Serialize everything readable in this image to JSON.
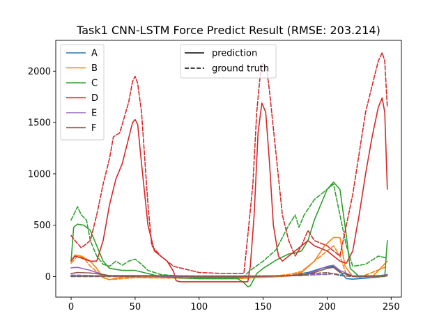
{
  "chart_data": {
    "type": "line",
    "title": "Task1 CNN-LSTM Force Predict Result (RMSE: 203.214)",
    "xlabel": "",
    "ylabel": "",
    "xlim": [
      -12,
      258
    ],
    "ylim": [
      -200,
      2300
    ],
    "xticks": [
      0,
      50,
      100,
      150,
      200,
      250
    ],
    "yticks": [
      0,
      500,
      1000,
      1500,
      2000
    ],
    "grid": false,
    "series_legend_position": "top-left",
    "style_legend_position": "top-center",
    "style_legend": [
      {
        "label": "prediction",
        "dash": "solid"
      },
      {
        "label": "ground truth",
        "dash": "dashed"
      }
    ],
    "series": [
      {
        "name": "A",
        "color": "#1f77b4",
        "prediction": {
          "x": [
            0,
            20,
            40,
            60,
            80,
            100,
            120,
            135,
            150,
            170,
            185,
            195,
            205,
            210,
            215,
            220,
            230,
            240,
            247
          ],
          "y": [
            5,
            5,
            5,
            3,
            0,
            -5,
            -5,
            -5,
            5,
            10,
            40,
            80,
            100,
            50,
            -20,
            -25,
            -15,
            -5,
            10
          ]
        },
        "truth": {
          "x": [
            0,
            20,
            40,
            60,
            80,
            100,
            140,
            160,
            180,
            195,
            205,
            215,
            230,
            247
          ],
          "y": [
            10,
            5,
            5,
            5,
            3,
            0,
            0,
            5,
            10,
            20,
            30,
            5,
            0,
            5
          ]
        }
      },
      {
        "name": "B",
        "color": "#ff7f0e",
        "prediction": {
          "x": [
            0,
            3,
            8,
            15,
            20,
            25,
            30,
            40,
            60,
            80,
            100,
            130,
            145,
            155,
            170,
            180,
            190,
            198,
            205,
            210,
            214,
            220,
            235,
            247
          ],
          "y": [
            150,
            210,
            200,
            150,
            80,
            -10,
            -30,
            -5,
            -5,
            -10,
            -20,
            -20,
            -10,
            -5,
            5,
            40,
            150,
            300,
            380,
            380,
            100,
            0,
            -5,
            150
          ]
        },
        "truth": {
          "x": [
            0,
            5,
            10,
            15,
            20,
            25,
            30,
            50,
            80,
            120,
            150,
            170,
            180,
            190,
            200,
            205,
            210,
            215,
            225,
            247
          ],
          "y": [
            130,
            200,
            180,
            100,
            50,
            -10,
            -30,
            -10,
            -15,
            -20,
            -5,
            20,
            50,
            150,
            250,
            300,
            200,
            20,
            -10,
            100
          ]
        }
      },
      {
        "name": "C",
        "color": "#2ca02c",
        "prediction": {
          "x": [
            0,
            2,
            5,
            10,
            15,
            20,
            25,
            30,
            40,
            50,
            60,
            70,
            80,
            100,
            130,
            135,
            138,
            140,
            145,
            150,
            160,
            170,
            175,
            180,
            185,
            190,
            200,
            205,
            210,
            215,
            218,
            225,
            235,
            245,
            247
          ],
          "y": [
            150,
            480,
            510,
            500,
            450,
            300,
            150,
            80,
            60,
            60,
            30,
            0,
            -10,
            -20,
            -20,
            -60,
            -100,
            -90,
            30,
            80,
            160,
            220,
            230,
            250,
            350,
            550,
            850,
            920,
            850,
            400,
            80,
            0,
            0,
            0,
            350
          ]
        },
        "truth": {
          "x": [
            0,
            2,
            5,
            8,
            12,
            15,
            20,
            25,
            30,
            35,
            40,
            45,
            50,
            55,
            60,
            70,
            100,
            130,
            135,
            140,
            150,
            160,
            170,
            175,
            178,
            182,
            190,
            200,
            205,
            210,
            215,
            220,
            230,
            240,
            247
          ],
          "y": [
            550,
            600,
            680,
            600,
            550,
            350,
            200,
            120,
            100,
            150,
            110,
            150,
            170,
            120,
            60,
            20,
            -10,
            -10,
            0,
            60,
            150,
            260,
            500,
            600,
            480,
            600,
            750,
            850,
            900,
            600,
            300,
            100,
            120,
            200,
            180
          ]
        }
      },
      {
        "name": "D",
        "color": "#d62728",
        "prediction": {
          "x": [
            0,
            3,
            8,
            15,
            20,
            25,
            30,
            35,
            40,
            45,
            48,
            50,
            52,
            55,
            60,
            65,
            70,
            75,
            80,
            82,
            85,
            100,
            120,
            138,
            140,
            143,
            146,
            149,
            152,
            155,
            158,
            162,
            165,
            170,
            175,
            180,
            185,
            190,
            200,
            205,
            210,
            215,
            220,
            225,
            230,
            235,
            240,
            243,
            245,
            247
          ],
          "y": [
            150,
            200,
            180,
            150,
            150,
            350,
            700,
            950,
            1100,
            1350,
            1500,
            1530,
            1480,
            1100,
            500,
            250,
            200,
            150,
            50,
            -40,
            -50,
            -50,
            -50,
            -50,
            100,
            600,
            1400,
            1690,
            1600,
            1100,
            500,
            200,
            150,
            200,
            250,
            300,
            350,
            300,
            250,
            200,
            150,
            130,
            250,
            600,
            1000,
            1350,
            1650,
            1740,
            1600,
            850
          ]
        },
        "truth": {
          "x": [
            0,
            3,
            8,
            15,
            20,
            25,
            30,
            33,
            38,
            45,
            48,
            50,
            52,
            55,
            60,
            63,
            70,
            75,
            80,
            100,
            120,
            135,
            138,
            142,
            145,
            148,
            150,
            153,
            155,
            160,
            165,
            170,
            175,
            180,
            185,
            190,
            200,
            205,
            210,
            220,
            225,
            230,
            235,
            240,
            243,
            245,
            247
          ],
          "y": [
            400,
            350,
            280,
            350,
            600,
            900,
            1150,
            1360,
            1400,
            1700,
            1900,
            1950,
            1880,
            1600,
            700,
            300,
            200,
            150,
            100,
            40,
            30,
            30,
            400,
            900,
            1600,
            2000,
            2080,
            2000,
            1800,
            1200,
            600,
            350,
            200,
            300,
            450,
            350,
            300,
            250,
            200,
            800,
            1200,
            1600,
            1850,
            2100,
            2180,
            2100,
            1650
          ]
        }
      },
      {
        "name": "E",
        "color": "#9467bd",
        "prediction": {
          "x": [
            0,
            5,
            10,
            15,
            20,
            25,
            30,
            40,
            60,
            80,
            100,
            140,
            160,
            180,
            190,
            200,
            205,
            210,
            220,
            235,
            247
          ],
          "y": [
            85,
            90,
            75,
            60,
            40,
            20,
            5,
            5,
            5,
            0,
            0,
            0,
            5,
            10,
            50,
            100,
            110,
            60,
            5,
            0,
            20
          ]
        },
        "truth": {
          "x": [
            0,
            20,
            40,
            60,
            80,
            100,
            140,
            170,
            190,
            200,
            205,
            210,
            220,
            247
          ],
          "y": [
            15,
            10,
            5,
            10,
            10,
            5,
            5,
            10,
            20,
            20,
            30,
            10,
            5,
            10
          ]
        }
      },
      {
        "name": "F",
        "color": "#8c564b",
        "prediction": {
          "x": [
            0,
            5,
            15,
            25,
            30,
            50,
            80,
            100,
            140,
            160,
            180,
            190,
            200,
            205,
            210,
            220,
            247
          ],
          "y": [
            30,
            40,
            35,
            20,
            10,
            10,
            5,
            5,
            5,
            5,
            10,
            40,
            80,
            90,
            40,
            5,
            10
          ]
        },
        "truth": {
          "x": [
            0,
            20,
            40,
            60,
            80,
            100,
            140,
            170,
            190,
            200,
            210,
            220,
            247
          ],
          "y": [
            0,
            0,
            0,
            5,
            5,
            0,
            0,
            10,
            30,
            40,
            10,
            0,
            5
          ]
        }
      }
    ]
  }
}
